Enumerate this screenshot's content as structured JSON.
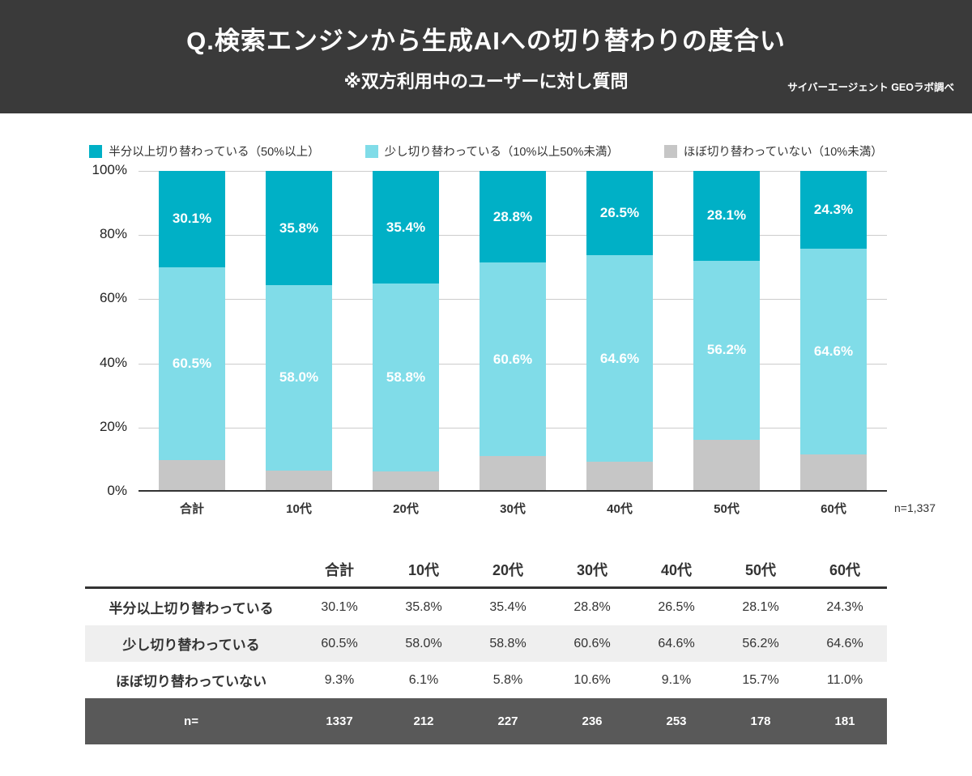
{
  "header": {
    "title": "Q.検索エンジンから生成AIへの切り替わりの度合い",
    "subtitle": "※双方利用中のユーザーに対し質問",
    "source": "サイバーエージェント GEOラボ調べ"
  },
  "chart_data": {
    "type": "bar",
    "stacked": true,
    "percent": true,
    "categories": [
      "合計",
      "10代",
      "20代",
      "30代",
      "40代",
      "50代",
      "60代"
    ],
    "series": [
      {
        "name": "半分以上切り替わっている（50%以上）",
        "color": "#00b0c6",
        "show_labels": true,
        "values": [
          30.1,
          35.8,
          35.4,
          28.8,
          26.5,
          28.1,
          24.3
        ]
      },
      {
        "name": "少し切り替わっている（10%以上50%未満）",
        "color": "#80dce8",
        "show_labels": true,
        "values": [
          60.5,
          58.0,
          58.8,
          60.6,
          64.6,
          56.2,
          64.6
        ]
      },
      {
        "name": "ほぼ切り替わっていない（10%未満）",
        "color": "#c6c6c6",
        "show_labels": false,
        "values": [
          9.3,
          6.1,
          5.8,
          10.6,
          9.1,
          15.7,
          11.0
        ]
      }
    ],
    "ylim": [
      0,
      100
    ],
    "yticks": [
      0,
      20,
      40,
      60,
      80,
      100
    ],
    "grid": true,
    "legend_position": "top",
    "note": "n=1,337"
  },
  "table": {
    "columns": [
      "合計",
      "10代",
      "20代",
      "30代",
      "40代",
      "50代",
      "60代"
    ],
    "rows": [
      {
        "label": "半分以上切り替わっている",
        "values": [
          "30.1%",
          "35.8%",
          "35.4%",
          "28.8%",
          "26.5%",
          "28.1%",
          "24.3%"
        ]
      },
      {
        "label": "少し切り替わっている",
        "values": [
          "60.5%",
          "58.0%",
          "58.8%",
          "60.6%",
          "64.6%",
          "56.2%",
          "64.6%"
        ]
      },
      {
        "label": "ほぼ切り替わっていない",
        "values": [
          "9.3%",
          "6.1%",
          "5.8%",
          "10.6%",
          "9.1%",
          "15.7%",
          "11.0%"
        ]
      }
    ],
    "n_row": {
      "label": "n=",
      "values": [
        "1337",
        "212",
        "227",
        "236",
        "253",
        "178",
        "181"
      ]
    }
  },
  "colors": {
    "banner_bg": "#3a3a3a",
    "stripe_bg": "#efefef",
    "n_row_bg": "#595959",
    "gridline": "#cccccc",
    "axis_line": "#333333"
  }
}
